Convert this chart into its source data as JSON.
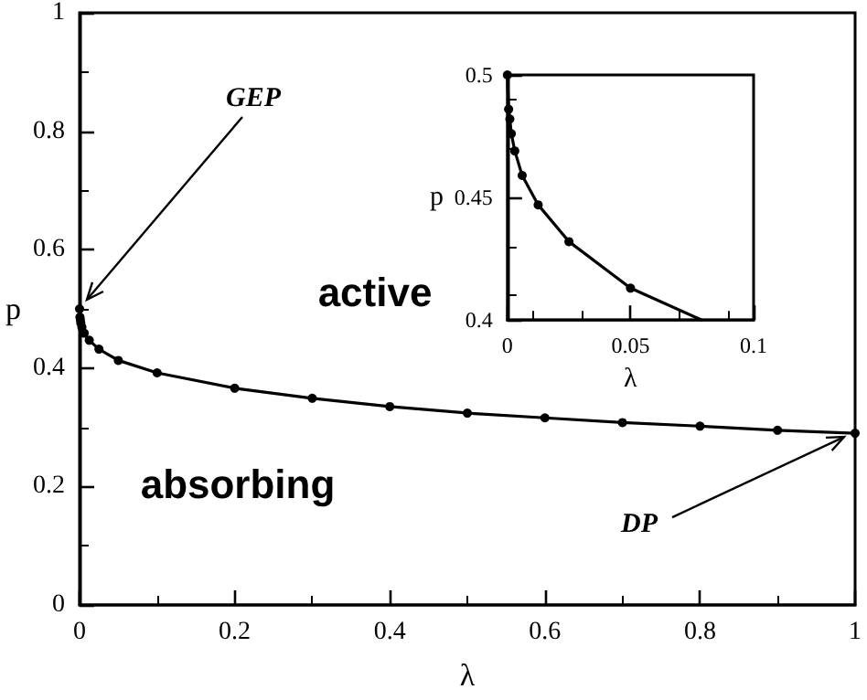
{
  "chart_data": [
    {
      "type": "line",
      "xlabel": "λ",
      "ylabel": "p",
      "xlim": [
        0,
        1
      ],
      "ylim": [
        0,
        1
      ],
      "xticks": [
        0,
        0.2,
        0.4,
        0.6,
        0.8,
        1
      ],
      "yticks": [
        0,
        0.2,
        0.4,
        0.6,
        0.8,
        1
      ],
      "grid": false,
      "marker": "circle",
      "line_style": "solid",
      "annotations": [
        {
          "text": "GEP",
          "x": 0,
          "y": 0.5
        },
        {
          "text": "DP",
          "x": 1,
          "y": 0.29
        },
        "active",
        "absorbing"
      ],
      "series": [
        {
          "color": "#000000",
          "x": [
            0,
            0.0005,
            0.001,
            0.0016,
            0.003,
            0.006,
            0.0125,
            0.025,
            0.05,
            0.1,
            0.2,
            0.3,
            0.4,
            0.5,
            0.6,
            0.7,
            0.8,
            0.9,
            1
          ],
          "values": [
            0.5,
            0.486,
            0.482,
            0.476,
            0.469,
            0.459,
            0.447,
            0.432,
            0.413,
            0.392,
            0.366,
            0.349,
            0.335,
            0.324,
            0.316,
            0.308,
            0.302,
            0.295,
            0.29
          ]
        }
      ]
    },
    {
      "type": "line",
      "xlabel": "λ",
      "ylabel": "p",
      "xlim": [
        0,
        0.1
      ],
      "ylim": [
        0.4,
        0.5
      ],
      "xticks": [
        0,
        0.05,
        0.1
      ],
      "yticks": [
        0.4,
        0.45,
        0.5
      ],
      "grid": false,
      "marker": "circle",
      "line_style": "solid",
      "series": [
        {
          "color": "#000000",
          "x": [
            0,
            0.0005,
            0.001,
            0.0016,
            0.003,
            0.006,
            0.0125,
            0.025,
            0.05
          ],
          "values": [
            0.5,
            0.486,
            0.482,
            0.476,
            0.469,
            0.459,
            0.447,
            0.432,
            0.413
          ]
        },
        {
          "color": "#000000",
          "marker": "none",
          "x": [
            0.05,
            0.079
          ],
          "values": [
            0.413,
            0.4
          ]
        }
      ]
    }
  ]
}
